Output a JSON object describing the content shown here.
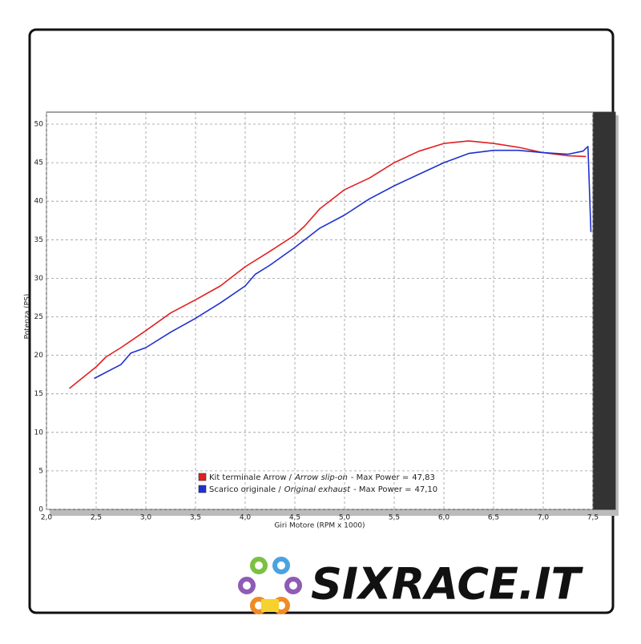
{
  "chart_data": {
    "type": "line",
    "y_label": "Potenza (PS)",
    "x_label": "Giri Motore (RPM x 1000)",
    "xlim": [
      2,
      7.5
    ],
    "xticks": [
      {
        "value": 2,
        "label": "2,0"
      },
      {
        "value": 2.5,
        "label": "2,5"
      },
      {
        "value": 3,
        "label": "3,0"
      },
      {
        "value": 3.5,
        "label": "3,5"
      },
      {
        "value": 4,
        "label": "4,0"
      },
      {
        "value": 4.5,
        "label": "4,5"
      },
      {
        "value": 5,
        "label": "5,0"
      },
      {
        "value": 5.5,
        "label": "5,5"
      },
      {
        "value": 6,
        "label": "6,0"
      },
      {
        "value": 6.5,
        "label": "6,5"
      },
      {
        "value": 7,
        "label": "7,0"
      },
      {
        "value": 7.5,
        "label": "7,5"
      }
    ],
    "ylim": [
      0,
      50
    ],
    "yticks": [
      0,
      5,
      10,
      15,
      20,
      25,
      30,
      35,
      40,
      45,
      50
    ],
    "grid": true,
    "max_label": "- Max Power =",
    "series": [
      {
        "name": "Kit terminale Arrow /",
        "name_italic": "Arrow slip-on",
        "max_power": {
          "value": 47.83,
          "label": "47,83"
        },
        "color": "#e02020",
        "x": [
          2.23,
          2.5,
          2.6,
          2.75,
          3.0,
          3.25,
          3.5,
          3.75,
          4.0,
          4.25,
          4.5,
          4.6,
          4.75,
          5.0,
          5.25,
          5.5,
          5.75,
          6.0,
          6.25,
          6.5,
          6.75,
          7.0,
          7.25,
          7.43
        ],
        "values": [
          15.7,
          18.5,
          19.8,
          21,
          23.2,
          25.5,
          27.2,
          29,
          31.5,
          33.5,
          35.6,
          36.8,
          39,
          41.5,
          43,
          45,
          46.5,
          47.5,
          47.83,
          47.5,
          47,
          46.3,
          45.9,
          45.8
        ]
      },
      {
        "name": "Scarico originale /",
        "name_italic": "Original exhaust",
        "max_power": {
          "value": 47.1,
          "label": "47,10"
        },
        "color": "#2030d0",
        "x": [
          2.48,
          2.75,
          2.85,
          3.0,
          3.25,
          3.5,
          3.75,
          4.0,
          4.1,
          4.25,
          4.5,
          4.6,
          4.75,
          5.0,
          5.25,
          5.5,
          5.75,
          6.0,
          6.25,
          6.5,
          6.75,
          7.0,
          7.25,
          7.4,
          7.45,
          7.48
        ],
        "values": [
          17,
          18.8,
          20.3,
          21,
          23,
          24.8,
          26.8,
          29,
          30.5,
          31.7,
          34,
          35,
          36.5,
          38.2,
          40.3,
          42,
          43.5,
          45,
          46.2,
          46.6,
          46.6,
          46.3,
          46.1,
          46.5,
          47.1,
          36
        ]
      }
    ]
  },
  "logo": "SIXRACE.IT"
}
